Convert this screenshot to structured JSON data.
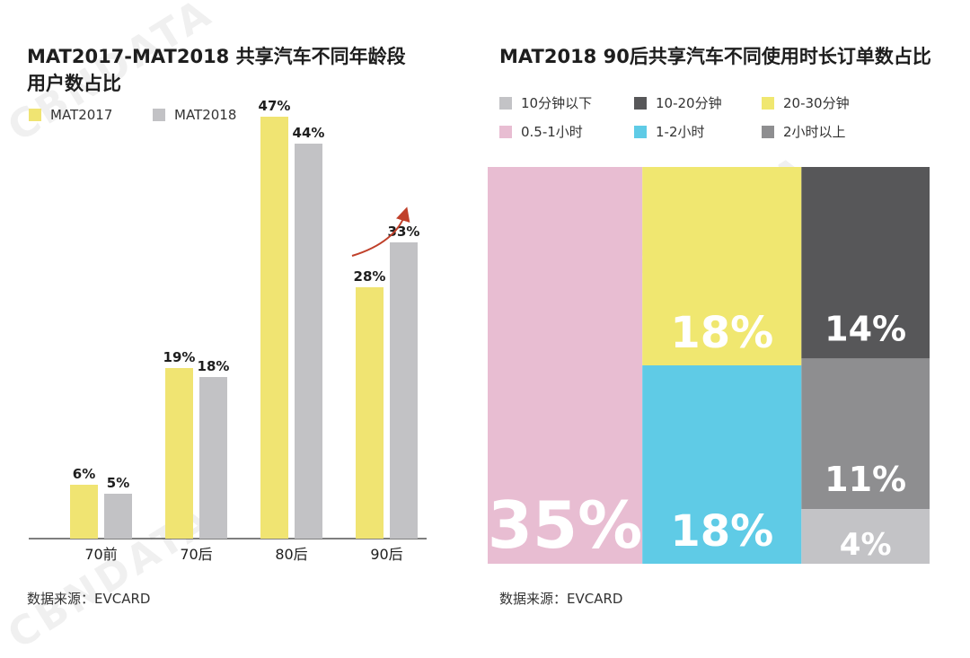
{
  "left_chart": {
    "title_line1": "MAT2017-MAT2018 共享汽车不同年龄段",
    "title_line2": "用户数占比",
    "source": "数据来源：EVCARD"
  },
  "right_chart": {
    "title": "MAT2018 90后共享汽车不同使用时长订单数占比",
    "source": "数据来源：EVCARD"
  },
  "watermark": "CBNDATA",
  "colors": {
    "mat2017": "#f0e472",
    "mat2018": "#c2c2c5",
    "axis": "#333333",
    "arrow": "#c0402a"
  },
  "chart_data": [
    {
      "type": "bar",
      "categories": [
        "70前",
        "70后",
        "80后",
        "90后"
      ],
      "series": [
        {
          "name": "MAT2017",
          "values": [
            6,
            19,
            47,
            28
          ],
          "labels": [
            "6%",
            "19%",
            "47%",
            "28%"
          ],
          "color": "#f0e472"
        },
        {
          "name": "MAT2018",
          "values": [
            5,
            18,
            44,
            33
          ],
          "labels": [
            "5%",
            "18%",
            "44%",
            "33%"
          ],
          "color": "#c2c2c5"
        }
      ],
      "ylim": [
        0,
        50
      ],
      "legend": "top-left"
    },
    {
      "type": "treemap",
      "segments": [
        {
          "name": "10分钟以下",
          "value": 4,
          "label": "4%",
          "color": "#c3c3c6"
        },
        {
          "name": "10-20分钟",
          "value": 14,
          "label": "14%",
          "color": "#575759"
        },
        {
          "name": "20-30分钟",
          "value": 18,
          "label": "18%",
          "color": "#f0e770"
        },
        {
          "name": "0.5-1小时",
          "value": 35,
          "label": "35%",
          "color": "#e8bdd2"
        },
        {
          "name": "1-2小时",
          "value": 18,
          "label": "18%",
          "color": "#5fcbe6"
        },
        {
          "name": "2小时以上",
          "value": 11,
          "label": "11%",
          "color": "#8e8e90"
        }
      ],
      "legend": "top"
    }
  ]
}
